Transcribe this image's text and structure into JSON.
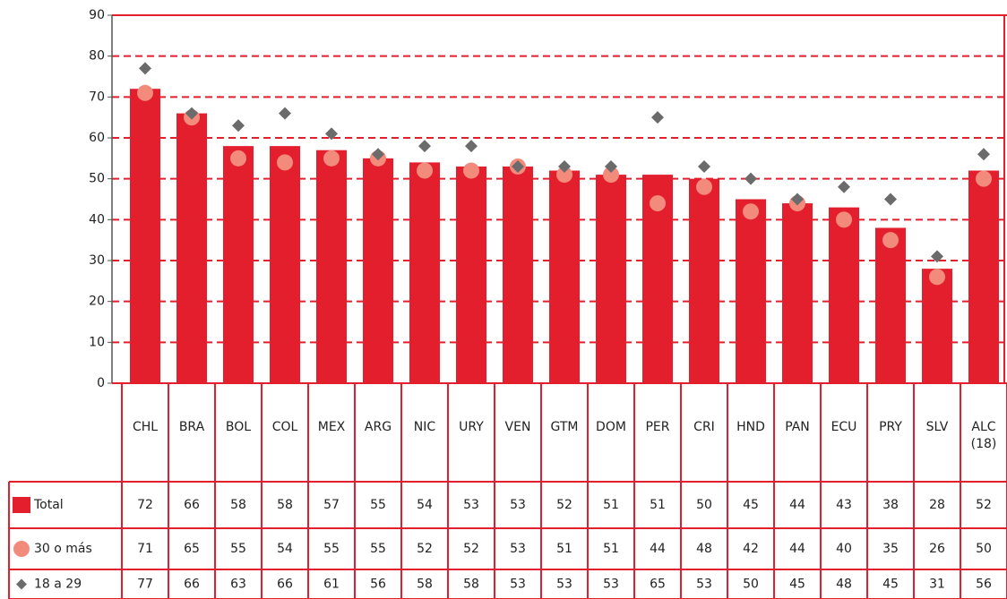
{
  "chart_data": {
    "type": "bar",
    "categories": [
      "CHL",
      "BRA",
      "BOL",
      "COL",
      "MEX",
      "ARG",
      "NIC",
      "URY",
      "VEN",
      "GTM",
      "DOM",
      "PER",
      "CRI",
      "HND",
      "PAN",
      "ECU",
      "PRY",
      "SLV",
      "ALC (18)"
    ],
    "series": [
      {
        "name": "Total",
        "color": "#e41f2d",
        "marker": "bar",
        "values": [
          72,
          66,
          58,
          58,
          57,
          55,
          54,
          53,
          53,
          52,
          51,
          51,
          50,
          45,
          44,
          43,
          38,
          28,
          52
        ]
      },
      {
        "name": "30 o más",
        "color": "#f28b7c",
        "marker": "circle",
        "values": [
          71,
          65,
          55,
          54,
          55,
          55,
          52,
          52,
          53,
          51,
          51,
          44,
          48,
          42,
          44,
          40,
          35,
          26,
          50
        ]
      },
      {
        "name": "18 a 29",
        "color": "#6b6b6b",
        "marker": "diamond",
        "values": [
          77,
          66,
          63,
          66,
          61,
          56,
          58,
          58,
          53,
          53,
          53,
          65,
          53,
          50,
          45,
          48,
          45,
          31,
          56
        ]
      }
    ],
    "ylim": [
      0,
      90
    ],
    "yticks": [
      0,
      10,
      20,
      30,
      40,
      50,
      60,
      70,
      80,
      90
    ],
    "grid": true
  }
}
